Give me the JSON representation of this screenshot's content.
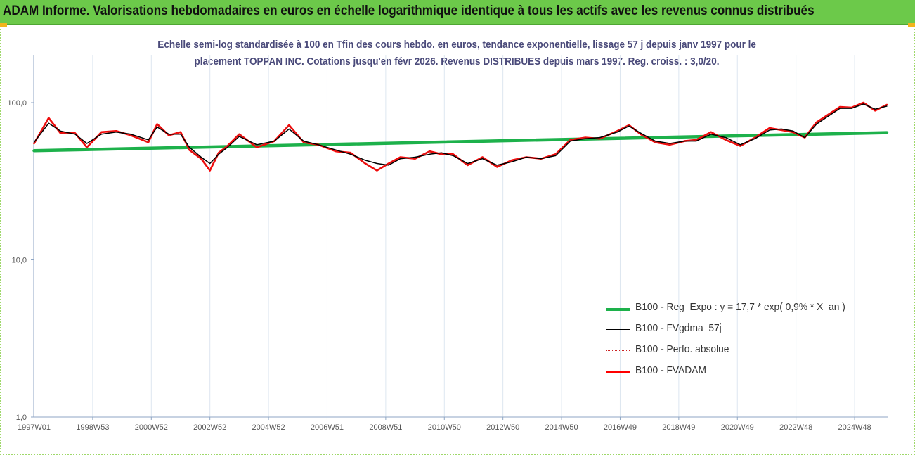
{
  "header": {
    "title": "ADAM Informe. Valorisations hebdomadaires en euros en échelle logarithmique identique à tous les actifs avec les revenus connus distribués"
  },
  "chart_data": {
    "type": "line",
    "title_lines": [
      "Echelle semi-log standardisée à 100 en Tfin des cours hebdo. en euros, tendance exponentielle, lissage 57 j depuis janv 1997 pour le",
      "placement TOPPAN INC. Cotations jusqu'en févr 2026. Revenus DISTRIBUES depuis mars 1997. Reg. croiss. : 3,0/20."
    ],
    "y_scale": "log",
    "ylim": [
      1,
      200
    ],
    "y_ticks": [
      {
        "value": 1,
        "label": "1,0"
      },
      {
        "value": 10,
        "label": "10,0"
      },
      {
        "value": 100,
        "label": "100,0"
      }
    ],
    "xlim": [
      1997.0,
      2026.15
    ],
    "x_ticks": [
      {
        "value": 1997.0,
        "label": "1997W01"
      },
      {
        "value": 1999.0,
        "label": "1998W53"
      },
      {
        "value": 2001.0,
        "label": "2000W52"
      },
      {
        "value": 2003.0,
        "label": "2002W52"
      },
      {
        "value": 2005.0,
        "label": "2004W52"
      },
      {
        "value": 2007.0,
        "label": "2006W51"
      },
      {
        "value": 2009.0,
        "label": "2008W51"
      },
      {
        "value": 2011.0,
        "label": "2010W50"
      },
      {
        "value": 2013.0,
        "label": "2012W50"
      },
      {
        "value": 2015.0,
        "label": "2014W50"
      },
      {
        "value": 2017.0,
        "label": "2016W49"
      },
      {
        "value": 2019.0,
        "label": "2018W49"
      },
      {
        "value": 2021.0,
        "label": "2020W49"
      },
      {
        "value": 2023.0,
        "label": "2022W48"
      },
      {
        "value": 2025.0,
        "label": "2024W48"
      }
    ],
    "grid": {
      "vertical": true,
      "horizontal": false
    },
    "legend_position": "bottom-right",
    "series": [
      {
        "name": "B100 - Reg_Expo : y = 17,7 * exp( 0,9% *  X_an )",
        "color": "#1db14b",
        "style": "thick",
        "x": [
          1997.0,
          2026.1
        ],
        "y": [
          49.5,
          64.5
        ]
      },
      {
        "name": "B100 - FVgdma_57j",
        "color": "#000000",
        "style": "thin",
        "x": [
          1997.0,
          1997.5,
          1997.9,
          1998.4,
          1998.8,
          1999.3,
          1999.8,
          2000.3,
          2000.9,
          2001.2,
          2001.6,
          2002.0,
          2002.3,
          2002.7,
          2003.0,
          2003.3,
          2003.6,
          2004.0,
          2004.6,
          2005.2,
          2005.7,
          2006.2,
          2006.7,
          2007.3,
          2007.8,
          2008.3,
          2008.7,
          2009.1,
          2009.5,
          2010.0,
          2010.5,
          2010.9,
          2011.3,
          2011.8,
          2012.3,
          2012.8,
          2013.3,
          2013.8,
          2014.3,
          2014.8,
          2015.3,
          2015.8,
          2016.3,
          2016.9,
          2017.3,
          2017.7,
          2018.2,
          2018.7,
          2019.2,
          2019.6,
          2020.1,
          2020.6,
          2021.1,
          2021.6,
          2022.1,
          2022.5,
          2022.9,
          2023.3,
          2023.7,
          2024.1,
          2024.5,
          2024.9,
          2025.3,
          2025.7,
          2026.1
        ],
        "y": [
          56,
          74,
          66,
          63,
          55,
          63,
          65,
          63,
          58,
          70,
          63,
          63,
          52,
          45,
          41,
          47,
          52,
          61,
          54,
          57,
          68,
          57,
          54,
          50,
          47,
          43,
          41,
          40,
          44,
          45,
          47,
          48,
          46,
          41,
          44,
          40,
          42,
          45,
          44,
          46,
          57,
          59,
          60,
          65,
          71,
          64,
          57,
          55,
          57,
          57,
          63,
          60,
          54,
          59,
          67,
          68,
          66,
          60,
          73,
          82,
          92,
          92,
          98,
          91,
          95
        ]
      },
      {
        "name": "B100 - Perfo. absolue",
        "color": "#cc2222",
        "style": "dotted",
        "x": [
          1997.0,
          1997.5,
          1997.9,
          1998.4,
          1998.8,
          1999.3,
          1999.8,
          2000.3,
          2000.9,
          2001.2,
          2001.6,
          2002.0,
          2002.3,
          2002.7,
          2003.0,
          2003.3,
          2003.6,
          2004.0,
          2004.6,
          2005.2,
          2005.7,
          2006.2,
          2006.7,
          2007.3,
          2007.8,
          2008.3,
          2008.7,
          2009.1,
          2009.5,
          2010.0,
          2010.5,
          2010.9,
          2011.3,
          2011.8,
          2012.3,
          2012.8,
          2013.3,
          2013.8,
          2014.3,
          2014.8,
          2015.3,
          2015.8,
          2016.3,
          2016.9,
          2017.3,
          2017.7,
          2018.2,
          2018.7,
          2019.2,
          2019.6,
          2020.1,
          2020.6,
          2021.1,
          2021.6,
          2022.1,
          2022.5,
          2022.9,
          2023.3,
          2023.7,
          2024.1,
          2024.5,
          2024.9,
          2025.3,
          2025.7,
          2026.1
        ],
        "y": [
          55,
          80,
          64,
          64,
          52,
          65,
          66,
          62,
          56,
          73,
          62,
          65,
          50,
          44,
          37,
          48,
          53,
          63,
          52,
          57,
          72,
          56,
          54,
          49,
          48,
          41,
          37,
          41,
          45,
          44,
          49,
          47,
          47,
          40,
          45,
          39,
          43,
          45,
          44,
          47,
          58,
          60,
          59,
          66,
          72,
          63,
          56,
          54,
          57,
          58,
          65,
          58,
          53,
          60,
          69,
          67,
          65,
          60,
          75,
          84,
          94,
          93,
          100,
          89,
          97
        ]
      },
      {
        "name": "B100 - FVADAM",
        "color": "#ff0000",
        "style": "medium",
        "x": [
          1997.0,
          1997.5,
          1997.9,
          1998.4,
          1998.8,
          1999.3,
          1999.8,
          2000.3,
          2000.9,
          2001.2,
          2001.6,
          2002.0,
          2002.3,
          2002.7,
          2003.0,
          2003.3,
          2003.6,
          2004.0,
          2004.6,
          2005.2,
          2005.7,
          2006.2,
          2006.7,
          2007.3,
          2007.8,
          2008.3,
          2008.7,
          2009.1,
          2009.5,
          2010.0,
          2010.5,
          2010.9,
          2011.3,
          2011.8,
          2012.3,
          2012.8,
          2013.3,
          2013.8,
          2014.3,
          2014.8,
          2015.3,
          2015.8,
          2016.3,
          2016.9,
          2017.3,
          2017.7,
          2018.2,
          2018.7,
          2019.2,
          2019.6,
          2020.1,
          2020.6,
          2021.1,
          2021.6,
          2022.1,
          2022.5,
          2022.9,
          2023.3,
          2023.7,
          2024.1,
          2024.5,
          2024.9,
          2025.3,
          2025.7,
          2026.1
        ],
        "y": [
          55,
          80,
          64,
          64,
          52,
          65,
          66,
          62,
          56,
          73,
          62,
          65,
          50,
          44,
          37,
          48,
          53,
          63,
          52,
          57,
          72,
          56,
          54,
          49,
          48,
          41,
          37,
          41,
          45,
          44,
          49,
          47,
          47,
          40,
          45,
          39,
          43,
          45,
          44,
          47,
          58,
          60,
          59,
          66,
          72,
          63,
          56,
          54,
          57,
          58,
          65,
          58,
          53,
          60,
          69,
          67,
          65,
          60,
          75,
          84,
          94,
          93,
          100,
          89,
          97
        ]
      }
    ]
  }
}
